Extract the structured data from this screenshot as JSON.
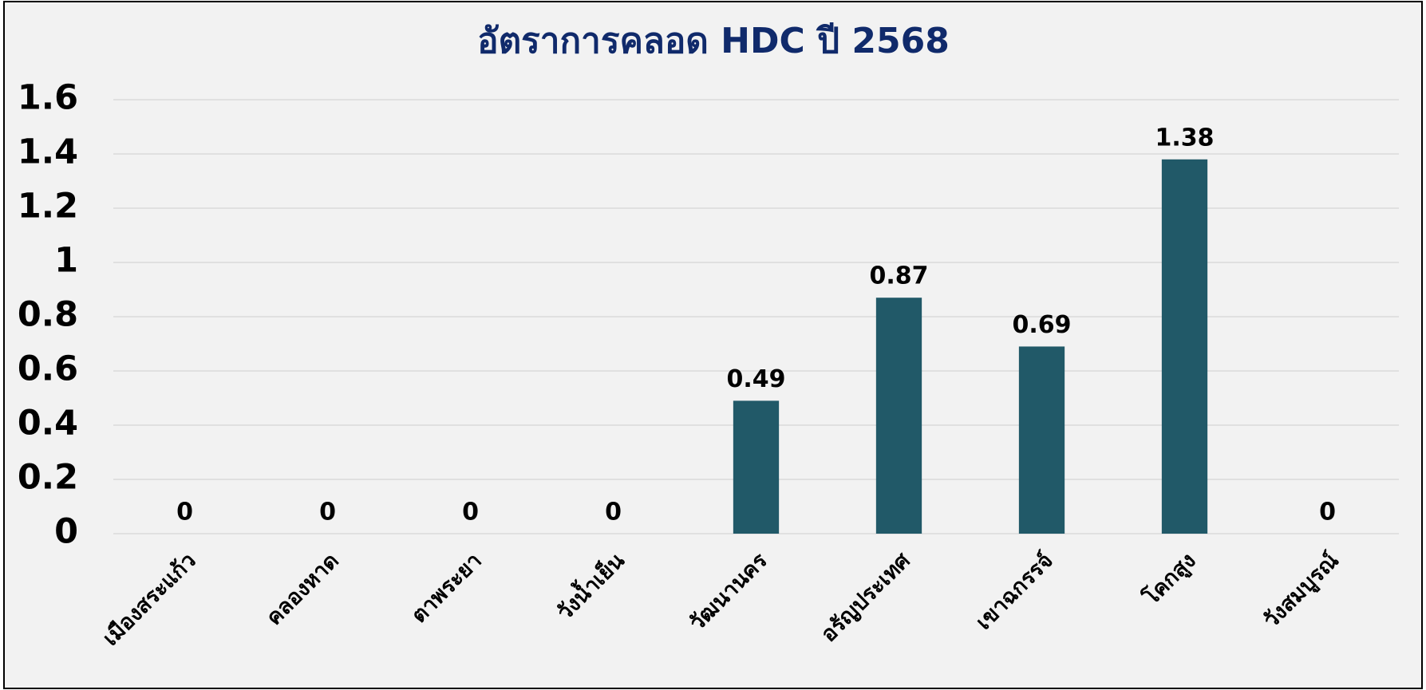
{
  "chart_data": {
    "type": "bar",
    "title": "อัตราการคลอด HDC ปี 2568",
    "categories": [
      "เมืองสระแก้ว",
      "คลองหาด",
      "ตาพระยา",
      "วังน้ำเย็น",
      "วัฒนานคร",
      "อรัญประเทศ",
      "เขาฉกรรจ์",
      "โคกสูง",
      "วังสมบูรณ์"
    ],
    "values": [
      0,
      0,
      0,
      0,
      0.49,
      0.87,
      0.69,
      1.38,
      0
    ],
    "color": "#215968",
    "ylim": [
      0,
      1.6
    ],
    "yticks": [
      0,
      0.2,
      0.4,
      0.6,
      0.8,
      1,
      1.2,
      1.4,
      1.6
    ],
    "grid": true
  }
}
